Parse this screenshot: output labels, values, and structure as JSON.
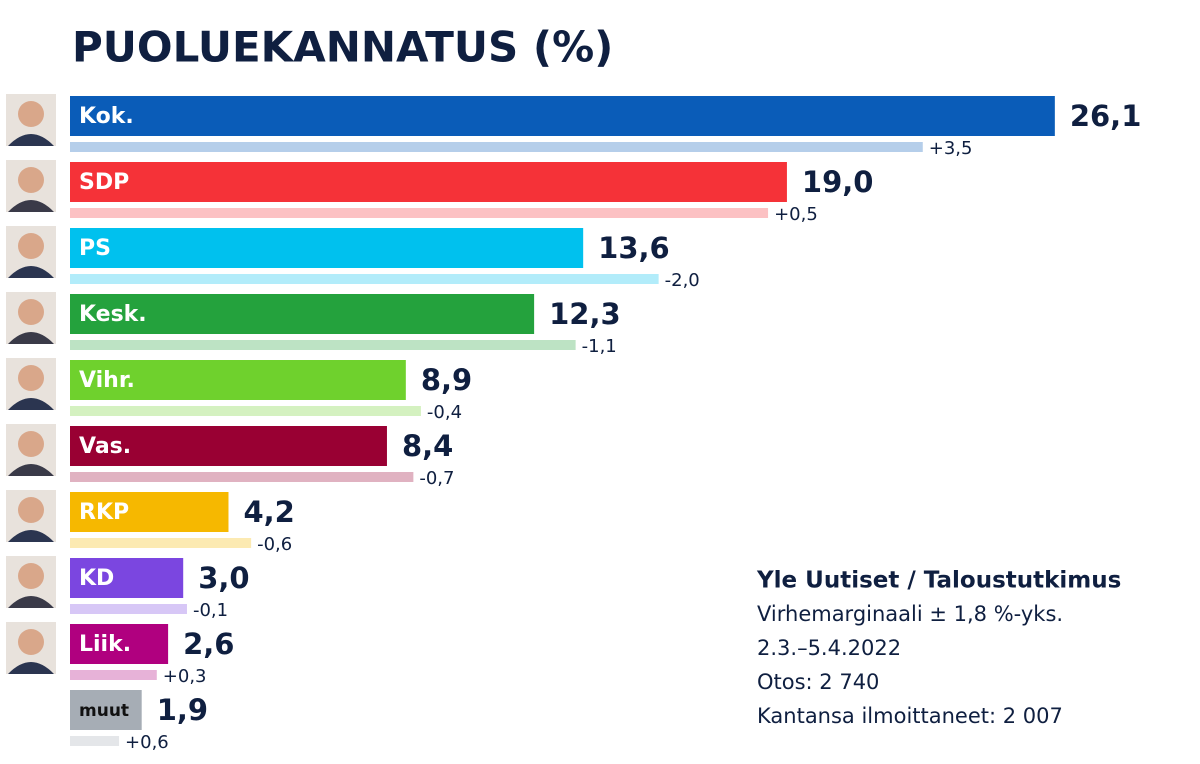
{
  "chart_data": {
    "type": "bar",
    "title": "PUOLUEKANNATUS (%)",
    "categories": [
      "Kok.",
      "SDP",
      "PS",
      "Kesk.",
      "Vihr.",
      "Vas.",
      "RKP",
      "KD",
      "Liik.",
      "muut"
    ],
    "values": [
      26.1,
      19.0,
      13.6,
      12.3,
      8.9,
      8.4,
      4.2,
      3.0,
      2.6,
      1.9
    ],
    "value_labels": [
      "26,1",
      "19,0",
      "13,6",
      "12,3",
      "8,9",
      "8,4",
      "4,2",
      "3,0",
      "2,6",
      "1,9"
    ],
    "changes": [
      3.5,
      0.5,
      -2.0,
      -1.1,
      -0.4,
      -0.7,
      -0.6,
      -0.1,
      0.3,
      0.6
    ],
    "change_labels": [
      "+3,5",
      "+0,5",
      "-2,0",
      "-1,1",
      "-0,4",
      "-0,7",
      "-0,6",
      "-0,1",
      "+0,3",
      "+0,6"
    ],
    "colors": [
      "#0a5cb8",
      "#f53238",
      "#00c1ee",
      "#24a23d",
      "#6fd12d",
      "#990033",
      "#f6b800",
      "#7b46e0",
      "#b0007f",
      "#a6adb5"
    ],
    "label_colors": [
      "#ffffff",
      "#ffffff",
      "#ffffff",
      "#ffffff",
      "#ffffff",
      "#ffffff",
      "#ffffff",
      "#ffffff",
      "#ffffff",
      "#111111"
    ],
    "xlim": [
      0,
      30
    ],
    "annotations": [
      "Yle Uutiset / Taloustutkimus",
      "Virhemarginaali ± 1,8 %-yks.",
      "2.3.–5.4.2022",
      "Otos: 2 740",
      "Kantansa ilmoittaneet: 2 007"
    ]
  }
}
